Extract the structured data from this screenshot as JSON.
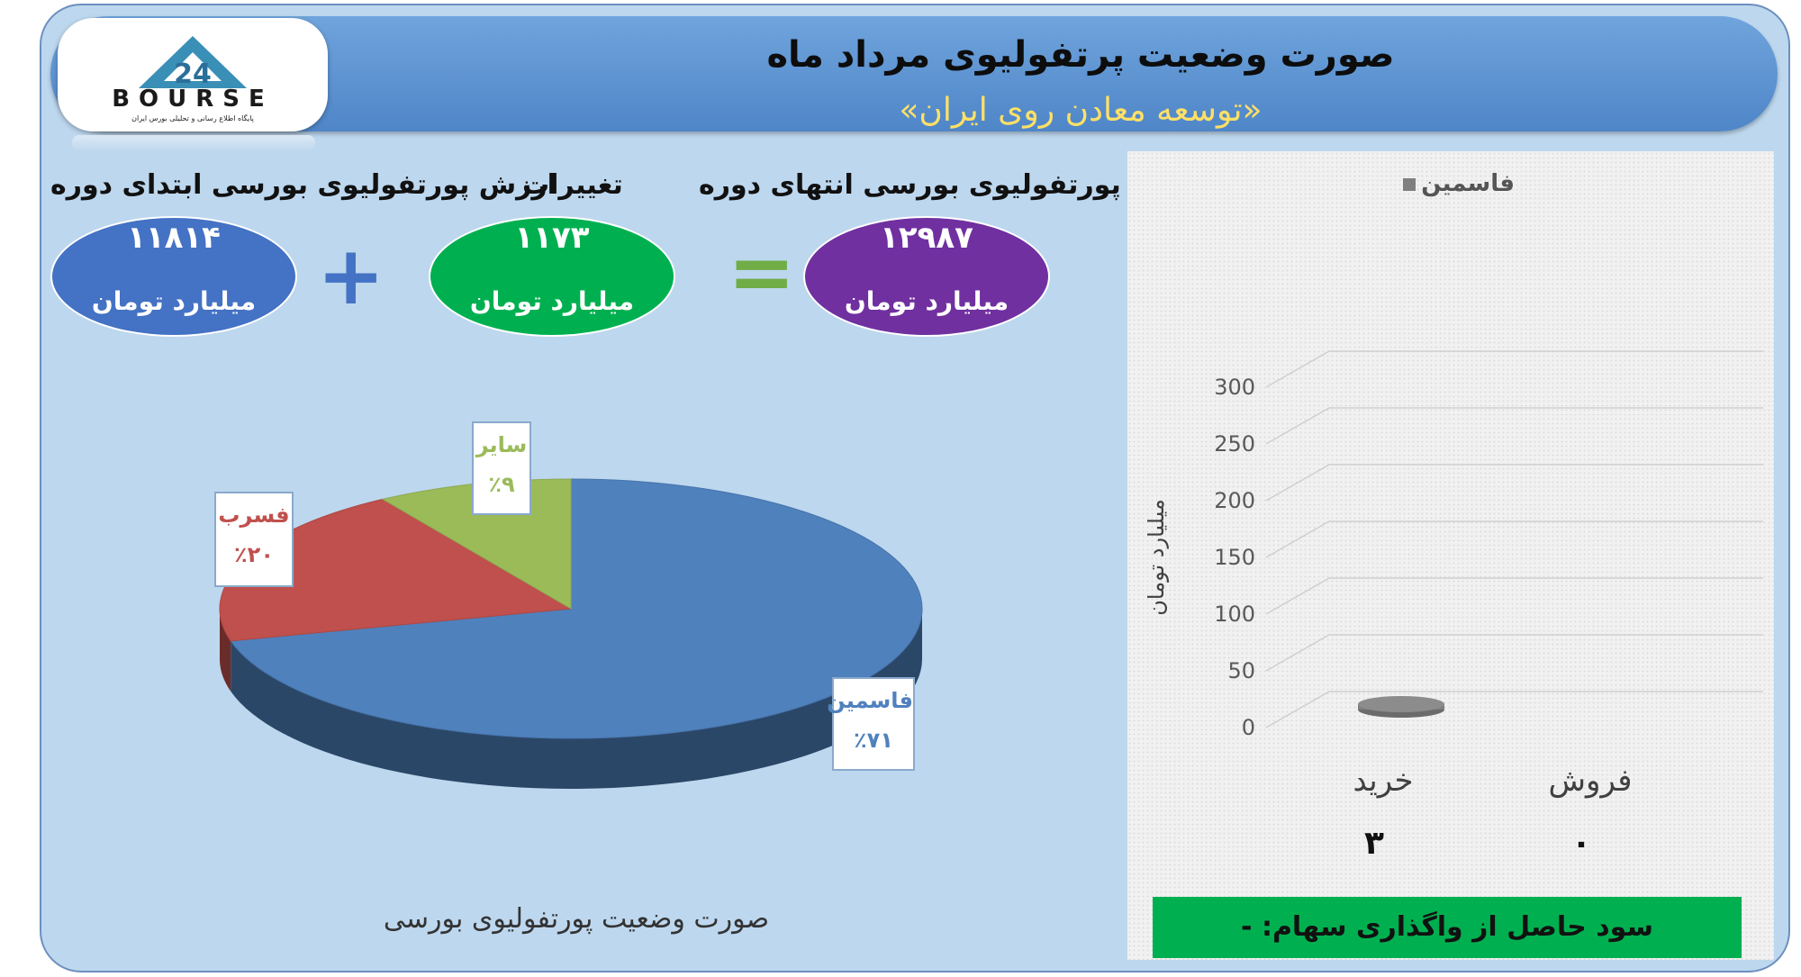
{
  "header": {
    "title": "صورت وضعیت پرتفولیوی مرداد ماه",
    "subtitle": "«توسعه معادن روی ایران»",
    "logo": {
      "text": "BOURSE",
      "number": "24",
      "tagline": "پایگاه اطلاع رسانی و تحلیلی بورس ایران"
    }
  },
  "metrics": {
    "end_label": "ارزش پورتفولیوی بورسی انتهای دوره",
    "end_value": "۱۲۹۸۷",
    "end_unit": "میلیارد تومان",
    "change_label": "تغییرات",
    "change_value": "۱۱۷۳",
    "change_unit": "میلیارد تومان",
    "start_label": "ارزش پورتفولیوی بورسی ابتدای دوره",
    "start_value": "۱۱۸۱۴",
    "start_unit": "میلیارد تومان",
    "equals": "=",
    "plus": "+"
  },
  "colors": {
    "end_oval": "#7030a0",
    "change_oval": "#00b050",
    "start_oval": "#4472c4",
    "equals": "#70ad47",
    "plus": "#4472c4",
    "pie_blue": "#4f81bd",
    "pie_red": "#c0504d",
    "pie_green": "#9bbb59"
  },
  "chart_data": [
    {
      "type": "pie",
      "title": "صورت وضعیت پورتفولیوی بورسی",
      "slices": [
        {
          "name": "فاسمین",
          "value": 71,
          "label": "٪۷۱",
          "color": "#4f81bd"
        },
        {
          "name": "فسرب",
          "value": 20,
          "label": "٪۲۰",
          "color": "#c0504d"
        },
        {
          "name": "سایر",
          "value": 9,
          "label": "٪۹",
          "color": "#9bbb59"
        }
      ]
    },
    {
      "type": "bar",
      "title": "",
      "legend": "فاسمین",
      "ylabel": "میلیارد تومان",
      "ylim": [
        0,
        300
      ],
      "yticks": [
        0,
        50,
        100,
        150,
        200,
        250,
        300
      ],
      "categories": [
        "خرید",
        "فروش"
      ],
      "values": [
        3,
        0
      ],
      "value_labels": [
        "۳",
        "۰"
      ]
    }
  ],
  "footer": {
    "profit_text": "سود حاصل از واگذاری سهام: -"
  }
}
